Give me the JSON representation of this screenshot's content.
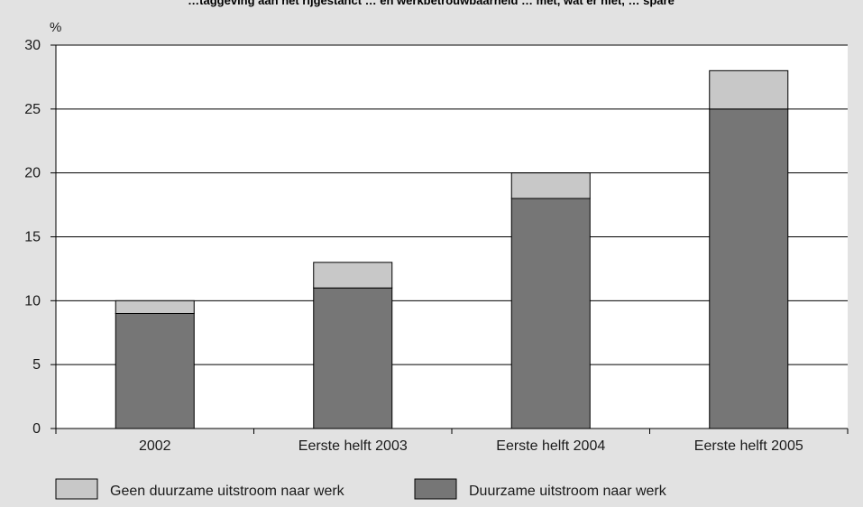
{
  "chart_data": {
    "type": "bar",
    "stacked": true,
    "title": "…taggeving aan het rijgestanct … en werkbetrouwbaarheid … met, wat er niet, … spare",
    "unit_label": "%",
    "categories": [
      "2002",
      "Eerste helft 2003",
      "Eerste helft 2004",
      "Eerste helft 2005"
    ],
    "series": [
      {
        "name": "Duurzame uitstroom naar werk",
        "values": [
          9,
          11,
          18,
          25
        ],
        "color": "#767676"
      },
      {
        "name": "Geen duurzame uitstroom naar werk",
        "values": [
          1,
          2,
          2,
          3
        ],
        "color": "#c8c8c8"
      }
    ],
    "ylim": [
      0,
      30
    ],
    "yticks": [
      0,
      5,
      10,
      15,
      20,
      25,
      30
    ],
    "grid": true,
    "legend_position": "bottom",
    "legend_order": [
      "Geen duurzame uitstroom naar werk",
      "Duurzame uitstroom naar werk"
    ],
    "colors": {
      "background": "#e2e2e2",
      "plot_background": "#ffffff",
      "axis": "#000000"
    }
  }
}
